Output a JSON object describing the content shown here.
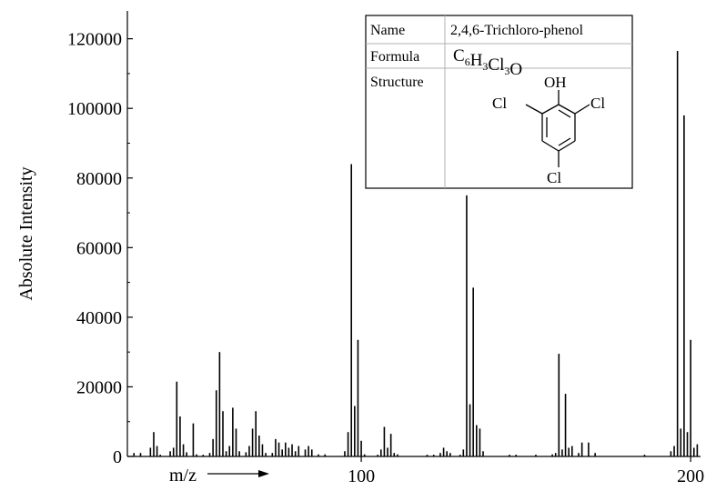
{
  "chart_data": {
    "type": "bar",
    "title": "",
    "xlabel": "m/z",
    "ylabel": "Absolute Intensity",
    "xlim": [
      29,
      203
    ],
    "ylim": [
      0,
      128000
    ],
    "x_ticks": [
      100,
      200
    ],
    "y_ticks": [
      0,
      20000,
      40000,
      60000,
      80000,
      100000,
      120000
    ],
    "grid": false,
    "bars": [
      {
        "x": 31,
        "y": 1000
      },
      {
        "x": 33,
        "y": 1000
      },
      {
        "x": 36,
        "y": 2500
      },
      {
        "x": 37,
        "y": 7000
      },
      {
        "x": 38,
        "y": 3000
      },
      {
        "x": 39,
        "y": 500
      },
      {
        "x": 42,
        "y": 1500
      },
      {
        "x": 43,
        "y": 2500
      },
      {
        "x": 44,
        "y": 21500
      },
      {
        "x": 45,
        "y": 11500
      },
      {
        "x": 46,
        "y": 3500
      },
      {
        "x": 47,
        "y": 1200
      },
      {
        "x": 49,
        "y": 9500
      },
      {
        "x": 50,
        "y": 600
      },
      {
        "x": 52,
        "y": 500
      },
      {
        "x": 54,
        "y": 1000
      },
      {
        "x": 55,
        "y": 5000
      },
      {
        "x": 56,
        "y": 19000
      },
      {
        "x": 57,
        "y": 30000
      },
      {
        "x": 58,
        "y": 13000
      },
      {
        "x": 59,
        "y": 1500
      },
      {
        "x": 60,
        "y": 3000
      },
      {
        "x": 61,
        "y": 14000
      },
      {
        "x": 62,
        "y": 8000
      },
      {
        "x": 63,
        "y": 1500
      },
      {
        "x": 65,
        "y": 1200
      },
      {
        "x": 66,
        "y": 3000
      },
      {
        "x": 67,
        "y": 8000
      },
      {
        "x": 68,
        "y": 13000
      },
      {
        "x": 69,
        "y": 6000
      },
      {
        "x": 70,
        "y": 3500
      },
      {
        "x": 71,
        "y": 1000
      },
      {
        "x": 73,
        "y": 1000
      },
      {
        "x": 74,
        "y": 5000
      },
      {
        "x": 75,
        "y": 4000
      },
      {
        "x": 76,
        "y": 2000
      },
      {
        "x": 77,
        "y": 4000
      },
      {
        "x": 78,
        "y": 2500
      },
      {
        "x": 79,
        "y": 3500
      },
      {
        "x": 80,
        "y": 1500
      },
      {
        "x": 81,
        "y": 3000
      },
      {
        "x": 83,
        "y": 2000
      },
      {
        "x": 84,
        "y": 3000
      },
      {
        "x": 85,
        "y": 2000
      },
      {
        "x": 87,
        "y": 600
      },
      {
        "x": 89,
        "y": 600
      },
      {
        "x": 95,
        "y": 1500
      },
      {
        "x": 96,
        "y": 7000
      },
      {
        "x": 97,
        "y": 84000
      },
      {
        "x": 98,
        "y": 14500
      },
      {
        "x": 99,
        "y": 33500
      },
      {
        "x": 100,
        "y": 4500
      },
      {
        "x": 101,
        "y": 600
      },
      {
        "x": 105,
        "y": 500
      },
      {
        "x": 106,
        "y": 2000
      },
      {
        "x": 107,
        "y": 8500
      },
      {
        "x": 108,
        "y": 2500
      },
      {
        "x": 109,
        "y": 6500
      },
      {
        "x": 110,
        "y": 1000
      },
      {
        "x": 111,
        "y": 600
      },
      {
        "x": 120,
        "y": 500
      },
      {
        "x": 122,
        "y": 500
      },
      {
        "x": 124,
        "y": 1000
      },
      {
        "x": 125,
        "y": 2500
      },
      {
        "x": 126,
        "y": 1500
      },
      {
        "x": 127,
        "y": 1000
      },
      {
        "x": 130,
        "y": 500
      },
      {
        "x": 131,
        "y": 2000
      },
      {
        "x": 132,
        "y": 75000
      },
      {
        "x": 133,
        "y": 15000
      },
      {
        "x": 134,
        "y": 48500
      },
      {
        "x": 135,
        "y": 9000
      },
      {
        "x": 136,
        "y": 8000
      },
      {
        "x": 137,
        "y": 1500
      },
      {
        "x": 145,
        "y": 500
      },
      {
        "x": 147,
        "y": 500
      },
      {
        "x": 153,
        "y": 500
      },
      {
        "x": 158,
        "y": 600
      },
      {
        "x": 159,
        "y": 1000
      },
      {
        "x": 160,
        "y": 29500
      },
      {
        "x": 161,
        "y": 2000
      },
      {
        "x": 162,
        "y": 18000
      },
      {
        "x": 163,
        "y": 2500
      },
      {
        "x": 164,
        "y": 3000
      },
      {
        "x": 166,
        "y": 1000
      },
      {
        "x": 167,
        "y": 4000
      },
      {
        "x": 169,
        "y": 4000
      },
      {
        "x": 171,
        "y": 1000
      },
      {
        "x": 186,
        "y": 500
      },
      {
        "x": 194,
        "y": 1500
      },
      {
        "x": 195,
        "y": 3000
      },
      {
        "x": 196,
        "y": 116500
      },
      {
        "x": 197,
        "y": 8000
      },
      {
        "x": 198,
        "y": 98000
      },
      {
        "x": 199,
        "y": 7000
      },
      {
        "x": 200,
        "y": 33500
      },
      {
        "x": 201,
        "y": 2500
      },
      {
        "x": 202,
        "y": 3500
      }
    ]
  },
  "compound_table": {
    "name_label": "Name",
    "name_value": "2,4,6-Trichloro-phenol",
    "formula_label": "Formula",
    "formula_parts": [
      {
        "text": "C",
        "sub": "6"
      },
      {
        "text": "H",
        "sub": "3"
      },
      {
        "text": "Cl",
        "sub": "3"
      },
      {
        "text": "O",
        "sub": ""
      }
    ],
    "structure_label": "Structure",
    "structure_atoms": {
      "hydroxyl": "OH",
      "chlorine_left": "Cl",
      "chlorine_right": "Cl",
      "chlorine_bottom": "Cl"
    }
  },
  "colors": {
    "bars": "#000000",
    "axes": "#000000",
    "table_border": "#000000",
    "table_grid": "#b0b0b0"
  }
}
